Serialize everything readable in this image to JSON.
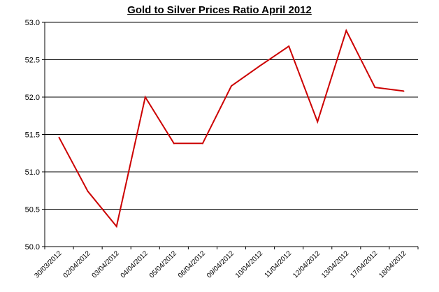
{
  "chart_data": {
    "type": "line",
    "title": "Gold to Silver Prices Ratio  April 2012",
    "xlabel": "",
    "ylabel": "",
    "categories": [
      "30/03/2012",
      "02/04/2012",
      "03/04/2012",
      "04/04/2012",
      "05/04/2012",
      "06/04/2012",
      "09/04/2012",
      "10/04/2012",
      "11/04/2012",
      "12/04/2012",
      "13/04/2012",
      "17/04/2012",
      "18/04/2012"
    ],
    "series": [
      {
        "values": [
          51.46,
          50.74,
          50.27,
          52.0,
          51.38,
          51.38,
          52.15,
          52.42,
          52.68,
          51.67,
          52.89,
          52.13,
          52.08
        ],
        "color": "#cc0000"
      }
    ],
    "ylim": [
      50.0,
      53.0
    ],
    "yticks": [
      "50.0",
      "50.5",
      "51.0",
      "51.5",
      "52.0",
      "52.5",
      "53.0"
    ],
    "grid": true,
    "legend": "none"
  }
}
